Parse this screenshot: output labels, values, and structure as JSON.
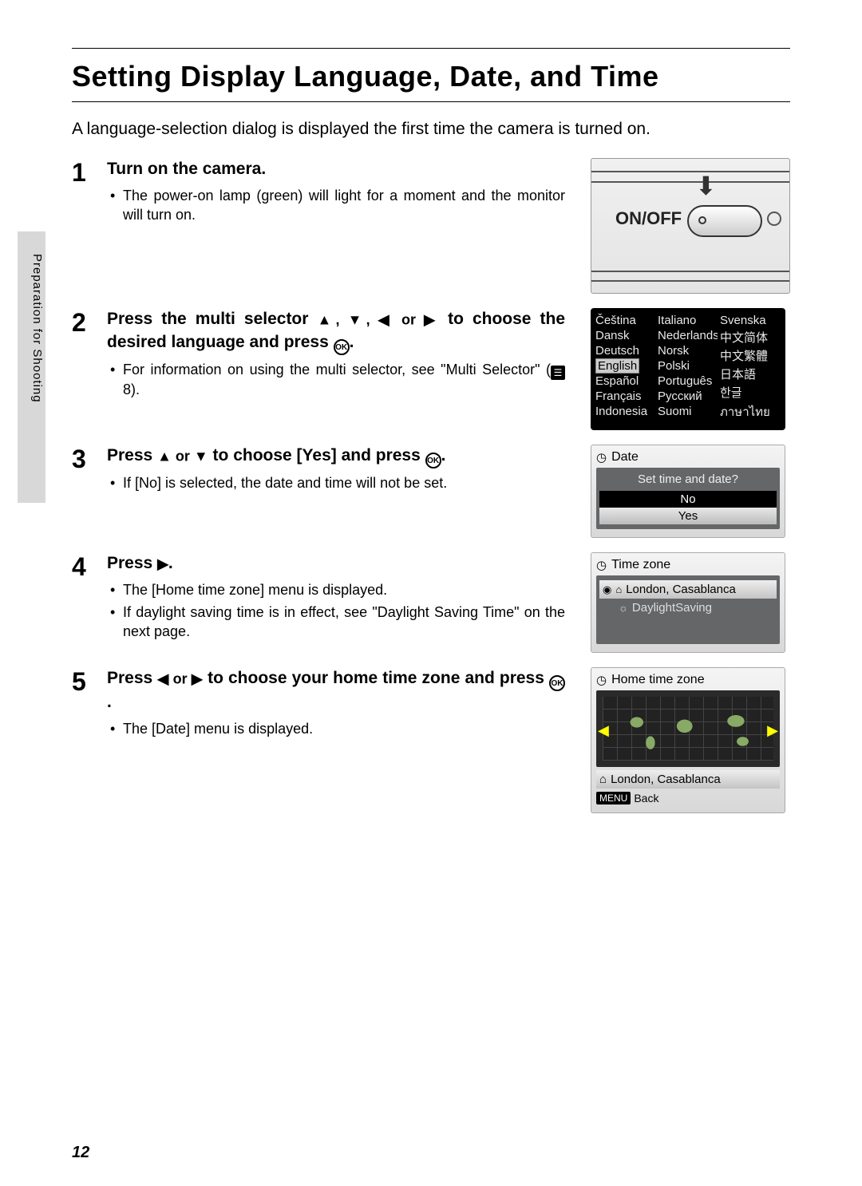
{
  "page_number": "12",
  "side_label": "Preparation for Shooting",
  "title": "Setting Display Language, Date, and Time",
  "intro": "A language-selection dialog is displayed the first time the camera is turned on.",
  "steps": {
    "s1": {
      "num": "1",
      "head": "Turn on the camera.",
      "b1": "The power-on lamp (green) will light for a moment and the monitor will turn on.",
      "onoff_label": "ON/OFF"
    },
    "s2": {
      "num": "2",
      "head_pre": "Press the multi selector ",
      "head_mid": " to choose the desired language and press ",
      "head_end": ".",
      "b1_pre": "For information on using the multi selector, see \"Multi Selector\" (",
      "b1_ref": " 8).",
      "languages": {
        "col1": [
          "Čeština",
          "Dansk",
          "Deutsch",
          "English",
          "Español",
          "Français",
          "Indonesia"
        ],
        "col2": [
          "Italiano",
          "Nederlands",
          "Norsk",
          "Polski",
          "Português",
          "Русский",
          "Suomi"
        ],
        "col3": [
          "Svenska",
          "中文简体",
          "中文繁體",
          "日本語",
          "한글",
          "ภาษาไทย",
          ""
        ]
      },
      "selected_language": "English"
    },
    "s3": {
      "num": "3",
      "head_pre": "Press ",
      "head_mid": " to choose [Yes] and press ",
      "head_end": ".",
      "b1": "If [No] is selected, the date and time will not be set.",
      "screen": {
        "title": "Date",
        "prompt": "Set time and date?",
        "opt_no": "No",
        "opt_yes": "Yes"
      }
    },
    "s4": {
      "num": "4",
      "head_pre": "Press ",
      "head_end": ".",
      "b1": "The [Home time zone] menu is displayed.",
      "b2": "If daylight saving time is in effect, see \"Daylight Saving Time\" on the next page.",
      "screen": {
        "title": "Time zone",
        "row1": "London, Casablanca",
        "row2": "DaylightSaving"
      }
    },
    "s5": {
      "num": "5",
      "head_pre": "Press ",
      "head_mid": " to choose your home time zone and press ",
      "head_end": ".",
      "b1": "The [Date] menu is displayed.",
      "screen": {
        "title": "Home time zone",
        "row1": "London, Casablanca",
        "menu_badge": "MENU",
        "back": "Back"
      }
    }
  },
  "icons": {
    "up": "▲",
    "down": "▼",
    "left": "◀",
    "right": "▶",
    "clock": "◷",
    "home": "⌂",
    "target": "◉",
    "sun": "☼",
    "ok": "OK",
    "ref": "☰"
  },
  "arrows_group": "▲, ▼, ◀ or ▶",
  "arrows_ud": "▲ or ▼",
  "arrows_lr": "◀ or ▶"
}
